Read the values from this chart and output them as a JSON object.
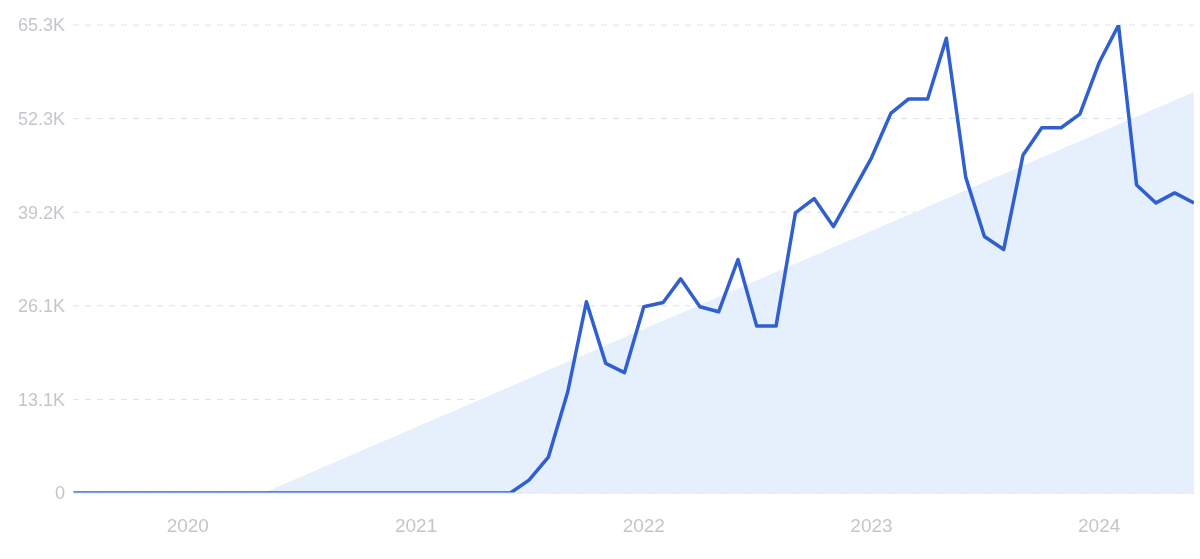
{
  "chart_data": {
    "type": "line",
    "xlim": [
      "2019-07",
      "2024-06"
    ],
    "xticks": [
      "2020",
      "2021",
      "2022",
      "2023",
      "2024"
    ],
    "ylim": [
      0,
      65340
    ],
    "yticks": [
      0,
      {
        "value": 13068,
        "label": "13.1K"
      },
      {
        "value": 26136,
        "label": "26.1K"
      },
      {
        "value": 39204,
        "label": "39.2K"
      },
      {
        "value": 52272,
        "label": "52.3K"
      },
      {
        "value": 65340,
        "label": "65.3K"
      }
    ],
    "grid": "y",
    "line_style": "solid",
    "marker": "none",
    "series": [
      {
        "type": "area",
        "color": "#e6effc",
        "x": [
          "2020-05",
          "2024-06"
        ],
        "values": [
          0,
          56000
        ]
      },
      {
        "color": "#2f5fd0",
        "x": [
          "2019-07",
          "2019-08",
          "2019-09",
          "2019-10",
          "2019-11",
          "2019-12",
          "2020-01",
          "2020-02",
          "2020-03",
          "2020-04",
          "2020-05",
          "2020-06",
          "2020-07",
          "2020-08",
          "2020-09",
          "2020-10",
          "2020-11",
          "2020-12",
          "2021-01",
          "2021-02",
          "2021-03",
          "2021-04",
          "2021-05",
          "2021-06",
          "2021-07",
          "2021-08",
          "2021-09",
          "2021-10",
          "2021-11",
          "2021-12",
          "2022-01",
          "2022-02",
          "2022-03",
          "2022-04",
          "2022-05",
          "2022-06",
          "2022-07",
          "2022-08",
          "2022-09",
          "2022-10",
          "2022-11",
          "2022-12",
          "2023-01",
          "2023-02",
          "2023-03",
          "2023-04",
          "2023-05",
          "2023-06",
          "2023-07",
          "2023-08",
          "2023-09",
          "2023-10",
          "2023-11",
          "2023-12",
          "2024-01",
          "2024-02",
          "2024-03",
          "2024-04",
          "2024-05",
          "2024-06"
        ],
        "values": [
          0,
          0,
          0,
          0,
          0,
          0,
          0,
          0,
          0,
          0,
          0,
          0,
          0,
          0,
          0,
          0,
          0,
          0,
          0,
          0,
          0,
          0,
          0,
          0,
          1800,
          5000,
          14100,
          26700,
          18100,
          16800,
          26000,
          26600,
          29900,
          26000,
          25300,
          32600,
          23300,
          23300,
          39100,
          41100,
          37200,
          41900,
          46800,
          53000,
          55000,
          55000,
          63500,
          44100,
          35800,
          34000,
          47200,
          51000,
          51000,
          52900,
          60100,
          65300,
          43000,
          40500,
          41900,
          40500
        ]
      }
    ]
  }
}
